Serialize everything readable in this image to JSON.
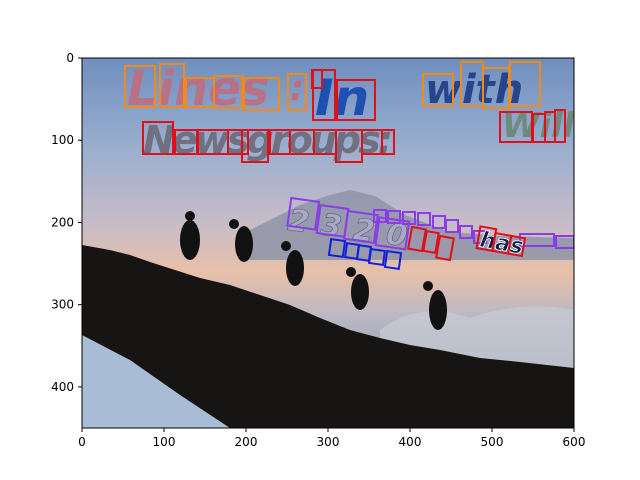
{
  "figure": {
    "x_ticks": [
      "0",
      "100",
      "200",
      "300",
      "400",
      "500",
      "600"
    ],
    "y_ticks": [
      "0",
      "100",
      "200",
      "300",
      "400"
    ],
    "colors": {
      "orange_box": "#f28a1a",
      "red_box": "#e0101a",
      "purple_box": "#8a3ce6",
      "blue_box": "#1020d8"
    },
    "words": [
      {
        "text": "Lines",
        "color": "#c36b7a"
      },
      {
        "text": ":",
        "color": "#c36b7a"
      },
      {
        "text": "In",
        "color": "#1f4fb0"
      },
      {
        "text": "with",
        "color": "#27468a"
      },
      {
        "text": "Will",
        "color": "#6e8a7a"
      },
      {
        "text": "Newsgroups:",
        "color": "#707080"
      },
      {
        "text": "2320",
        "color": "#a8a8c8"
      },
      {
        "text": "has",
        "color": "#101e48"
      }
    ]
  }
}
